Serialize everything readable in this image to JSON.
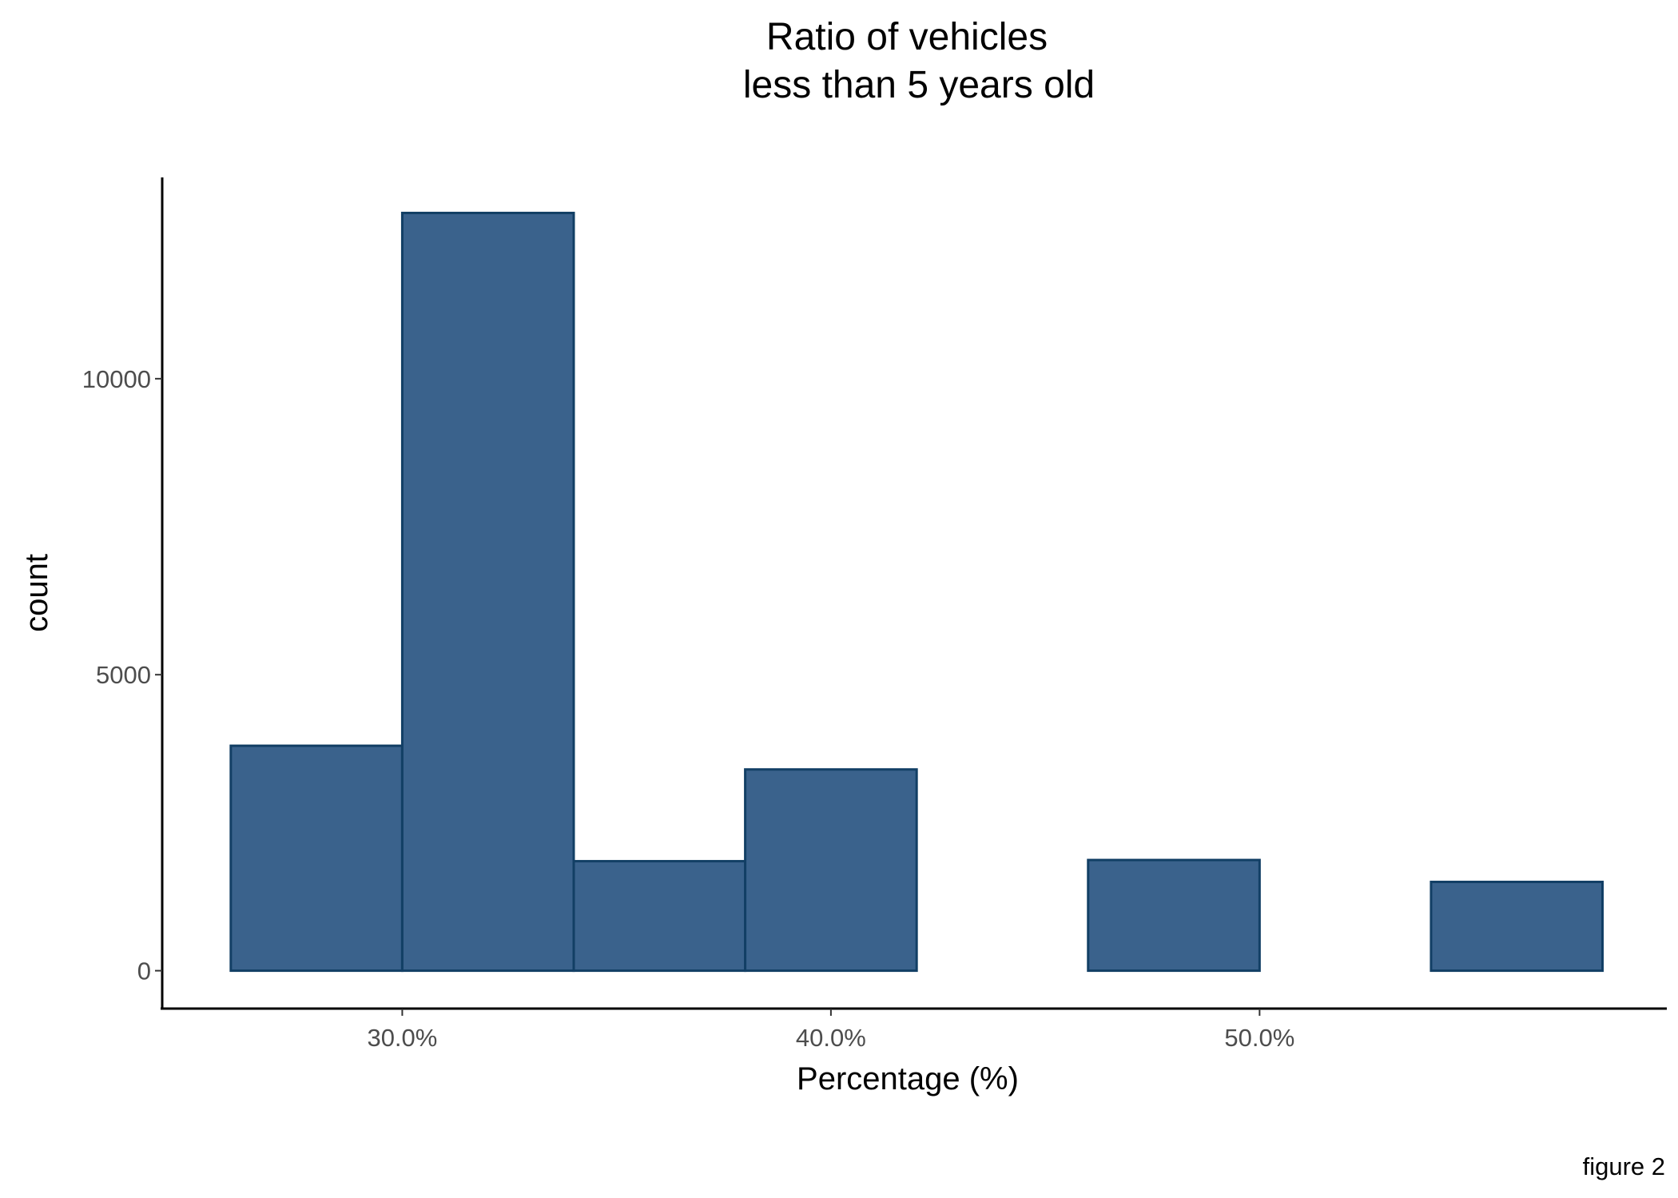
{
  "chart_data": {
    "type": "bar",
    "subtype": "histogram",
    "title_lines": [
      "Ratio of vehicles",
      "less than 5 years old"
    ],
    "xlabel": "Percentage (%)",
    "ylabel": "count",
    "caption": "figure 2",
    "bar_fill": "#3a628c",
    "bar_outline": "#123f65",
    "bins": [
      {
        "x_start": 26,
        "x_end": 30,
        "count": 3800
      },
      {
        "x_start": 30,
        "x_end": 34,
        "count": 12800
      },
      {
        "x_start": 34,
        "x_end": 38,
        "count": 1850
      },
      {
        "x_start": 38,
        "x_end": 42,
        "count": 3400
      },
      {
        "x_start": 42,
        "x_end": 46,
        "count": 0
      },
      {
        "x_start": 46,
        "x_end": 50,
        "count": 1870
      },
      {
        "x_start": 50,
        "x_end": 54,
        "count": 0
      },
      {
        "x_start": 54,
        "x_end": 58,
        "count": 1500
      }
    ],
    "x_ticks": [
      {
        "value": 30,
        "label": "30.0%"
      },
      {
        "value": 40,
        "label": "40.0%"
      },
      {
        "value": 50,
        "label": "50.0%"
      }
    ],
    "y_ticks": [
      {
        "value": 0,
        "label": "0"
      },
      {
        "value": 5000,
        "label": "5000"
      },
      {
        "value": 10000,
        "label": "10000"
      }
    ],
    "xlim": [
      24.4,
      59.5
    ],
    "ylim": [
      -640,
      13400
    ],
    "grid": false,
    "legend": "none"
  }
}
